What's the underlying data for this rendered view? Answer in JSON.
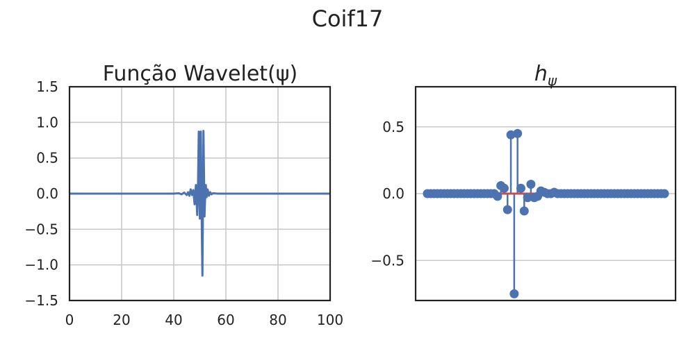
{
  "title": "Coif17",
  "chart_data": [
    {
      "type": "line",
      "title": "Função Wavelet(ψ)",
      "xlim": [
        0,
        100
      ],
      "ylim": [
        -1.5,
        1.5
      ],
      "xticks": [
        "0",
        "20",
        "40",
        "60",
        "80",
        "100"
      ],
      "yticks": [
        "1.5",
        "1.0",
        "0.5",
        "0.0",
        "−0.5",
        "−1.0",
        "−1.5"
      ],
      "grid": true,
      "color": "#4c72b0",
      "x": [
        0,
        40,
        42,
        43,
        44,
        45,
        45.5,
        46,
        46.5,
        47,
        47.5,
        48,
        48.5,
        49,
        49.3,
        49.6,
        49.8,
        50,
        50.2,
        50.4,
        50.6,
        50.8,
        51,
        51.2,
        51.4,
        51.6,
        51.8,
        52,
        52.3,
        52.6,
        53,
        53.5,
        54,
        54.5,
        55,
        56,
        57,
        58,
        60,
        100
      ],
      "y": [
        0,
        0,
        0.005,
        -0.01,
        0.015,
        -0.02,
        0.02,
        -0.03,
        0.06,
        -0.02,
        0.05,
        -0.15,
        0.12,
        -0.3,
        0.1,
        0.87,
        0.2,
        -0.35,
        0.3,
        0.87,
        0.1,
        -0.6,
        -1.15,
        -0.2,
        0.88,
        0.3,
        -0.32,
        -0.1,
        0.12,
        -0.05,
        0.06,
        -0.03,
        0.02,
        -0.01,
        0.005,
        0.002,
        0,
        0,
        0,
        0
      ]
    },
    {
      "type": "stem",
      "title": "h",
      "title_subscript": "ψ",
      "ylim": [
        -0.8,
        0.8
      ],
      "yticks": [
        "0.5",
        "0.0",
        "−0.5"
      ],
      "grid": true,
      "color": "#4c72b0",
      "baseline_color": "#c44e52",
      "values": [
        0,
        0,
        0,
        0,
        0,
        0,
        0,
        0,
        0,
        0,
        0,
        0,
        0,
        0,
        0,
        0,
        0,
        0,
        0,
        0,
        0,
        -0.02,
        0.06,
        0.04,
        -0.12,
        0.44,
        -0.75,
        0.45,
        0.04,
        -0.13,
        -0.03,
        0.07,
        -0.03,
        -0.02,
        0.02,
        0.01,
        0,
        0,
        0.01,
        0,
        0,
        0,
        0,
        0,
        0,
        0,
        0,
        0,
        0,
        0,
        0,
        0,
        0,
        0,
        0,
        0,
        0,
        0,
        0,
        0,
        0,
        0,
        0,
        0,
        0,
        0,
        0,
        0,
        0,
        0,
        0,
        0
      ]
    }
  ]
}
